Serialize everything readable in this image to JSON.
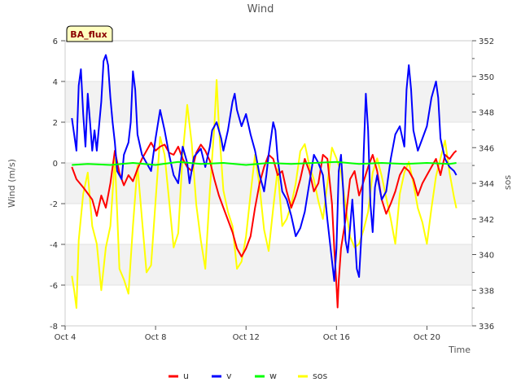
{
  "chart_data": {
    "type": "line",
    "title": "Wind",
    "badge": "BA_flux",
    "xlabel": "Time",
    "ylabel": "Wind (m/s)",
    "y2label": "sos",
    "x_ticks": [
      "Oct 4",
      "Oct 8",
      "Oct 12",
      "Oct 16",
      "Oct 20"
    ],
    "x_tick_days": [
      4,
      8,
      12,
      16,
      20
    ],
    "xlim": [
      4,
      22
    ],
    "ylim": [
      -8,
      6
    ],
    "y_ticks": [
      -8,
      -6,
      -4,
      -2,
      0,
      2,
      4,
      6
    ],
    "y2lim": [
      336,
      352
    ],
    "y2_ticks": [
      336,
      338,
      340,
      342,
      344,
      346,
      348,
      350,
      352
    ],
    "grid": "horizontal bands",
    "legend": "bottom-center",
    "series": [
      {
        "name": "u",
        "color": "#ff0000",
        "axis": "left",
        "points": [
          [
            4.3,
            -0.2
          ],
          [
            4.5,
            -0.8
          ],
          [
            4.8,
            -1.2
          ],
          [
            5.0,
            -1.5
          ],
          [
            5.2,
            -1.8
          ],
          [
            5.4,
            -2.6
          ],
          [
            5.6,
            -1.6
          ],
          [
            5.8,
            -2.2
          ],
          [
            6.0,
            -1.0
          ],
          [
            6.2,
            0.6
          ],
          [
            6.4,
            -0.5
          ],
          [
            6.6,
            -1.1
          ],
          [
            6.8,
            -0.6
          ],
          [
            7.0,
            -0.9
          ],
          [
            7.2,
            -0.3
          ],
          [
            7.4,
            0.2
          ],
          [
            7.6,
            0.6
          ],
          [
            7.8,
            1.0
          ],
          [
            8.0,
            0.6
          ],
          [
            8.2,
            0.8
          ],
          [
            8.4,
            0.9
          ],
          [
            8.6,
            0.5
          ],
          [
            8.8,
            0.4
          ],
          [
            9.0,
            0.8
          ],
          [
            9.2,
            0.2
          ],
          [
            9.4,
            -0.2
          ],
          [
            9.6,
            -0.4
          ],
          [
            9.8,
            0.5
          ],
          [
            10.0,
            0.9
          ],
          [
            10.2,
            0.6
          ],
          [
            10.4,
            0.1
          ],
          [
            10.6,
            -0.8
          ],
          [
            10.8,
            -1.6
          ],
          [
            11.0,
            -2.2
          ],
          [
            11.2,
            -2.8
          ],
          [
            11.4,
            -3.4
          ],
          [
            11.6,
            -4.2
          ],
          [
            11.8,
            -4.6
          ],
          [
            12.0,
            -4.2
          ],
          [
            12.2,
            -3.6
          ],
          [
            12.4,
            -2.2
          ],
          [
            12.6,
            -1.0
          ],
          [
            12.8,
            -0.2
          ],
          [
            13.0,
            0.4
          ],
          [
            13.2,
            0.2
          ],
          [
            13.4,
            -0.6
          ],
          [
            13.6,
            -0.4
          ],
          [
            13.8,
            -1.4
          ],
          [
            14.0,
            -2.2
          ],
          [
            14.2,
            -1.6
          ],
          [
            14.4,
            -0.8
          ],
          [
            14.6,
            0.2
          ],
          [
            14.8,
            -0.4
          ],
          [
            15.0,
            -1.4
          ],
          [
            15.2,
            -1.0
          ],
          [
            15.4,
            0.4
          ],
          [
            15.6,
            0.2
          ],
          [
            15.8,
            -2.0
          ],
          [
            15.9,
            -4.2
          ],
          [
            16.0,
            -6.0
          ],
          [
            16.05,
            -7.1
          ],
          [
            16.1,
            -5.8
          ],
          [
            16.2,
            -4.2
          ],
          [
            16.4,
            -2.8
          ],
          [
            16.6,
            -0.8
          ],
          [
            16.8,
            -0.4
          ],
          [
            17.0,
            -1.6
          ],
          [
            17.2,
            -0.9
          ],
          [
            17.4,
            -0.2
          ],
          [
            17.6,
            0.4
          ],
          [
            17.8,
            -0.4
          ],
          [
            18.0,
            -1.8
          ],
          [
            18.2,
            -2.5
          ],
          [
            18.4,
            -2.0
          ],
          [
            18.6,
            -1.4
          ],
          [
            18.8,
            -0.6
          ],
          [
            19.0,
            -0.2
          ],
          [
            19.2,
            -0.4
          ],
          [
            19.4,
            -0.8
          ],
          [
            19.6,
            -1.6
          ],
          [
            19.8,
            -1.0
          ],
          [
            20.0,
            -0.6
          ],
          [
            20.2,
            -0.2
          ],
          [
            20.4,
            0.2
          ],
          [
            20.6,
            -0.6
          ],
          [
            20.8,
            0.4
          ],
          [
            21.0,
            0.2
          ],
          [
            21.2,
            0.5
          ],
          [
            21.3,
            0.6
          ]
        ]
      },
      {
        "name": "v",
        "color": "#0000ff",
        "axis": "left",
        "points": [
          [
            4.3,
            2.2
          ],
          [
            4.4,
            1.4
          ],
          [
            4.5,
            0.6
          ],
          [
            4.6,
            3.8
          ],
          [
            4.7,
            4.6
          ],
          [
            4.8,
            2.4
          ],
          [
            4.9,
            0.8
          ],
          [
            5.0,
            3.4
          ],
          [
            5.1,
            2.0
          ],
          [
            5.2,
            0.6
          ],
          [
            5.3,
            1.6
          ],
          [
            5.4,
            0.6
          ],
          [
            5.6,
            3.0
          ],
          [
            5.7,
            5.0
          ],
          [
            5.8,
            5.3
          ],
          [
            5.9,
            4.8
          ],
          [
            6.0,
            3.2
          ],
          [
            6.1,
            2.0
          ],
          [
            6.2,
            1.0
          ],
          [
            6.3,
            -0.4
          ],
          [
            6.5,
            -0.8
          ],
          [
            6.6,
            0.4
          ],
          [
            6.8,
            1.0
          ],
          [
            6.9,
            2.0
          ],
          [
            7.0,
            4.5
          ],
          [
            7.1,
            3.6
          ],
          [
            7.2,
            1.4
          ],
          [
            7.4,
            0.4
          ],
          [
            7.6,
            0.0
          ],
          [
            7.8,
            -0.4
          ],
          [
            8.0,
            1.2
          ],
          [
            8.2,
            2.6
          ],
          [
            8.4,
            1.6
          ],
          [
            8.6,
            0.4
          ],
          [
            8.8,
            -0.6
          ],
          [
            9.0,
            -1.0
          ],
          [
            9.2,
            0.8
          ],
          [
            9.4,
            0.0
          ],
          [
            9.5,
            -1.0
          ],
          [
            9.7,
            0.3
          ],
          [
            10.0,
            0.7
          ],
          [
            10.2,
            -0.2
          ],
          [
            10.4,
            0.8
          ],
          [
            10.5,
            1.6
          ],
          [
            10.7,
            2.0
          ],
          [
            10.9,
            1.2
          ],
          [
            11.0,
            0.6
          ],
          [
            11.2,
            1.6
          ],
          [
            11.4,
            3.0
          ],
          [
            11.5,
            3.4
          ],
          [
            11.6,
            2.6
          ],
          [
            11.8,
            1.8
          ],
          [
            12.0,
            2.4
          ],
          [
            12.2,
            1.4
          ],
          [
            12.4,
            0.6
          ],
          [
            12.6,
            -0.6
          ],
          [
            12.8,
            -1.4
          ],
          [
            12.9,
            -0.6
          ],
          [
            13.0,
            0.4
          ],
          [
            13.2,
            2.0
          ],
          [
            13.3,
            1.6
          ],
          [
            13.4,
            0.2
          ],
          [
            13.6,
            -1.4
          ],
          [
            13.8,
            -1.8
          ],
          [
            14.0,
            -2.6
          ],
          [
            14.2,
            -3.6
          ],
          [
            14.4,
            -3.2
          ],
          [
            14.6,
            -2.4
          ],
          [
            14.8,
            -1.0
          ],
          [
            15.0,
            0.4
          ],
          [
            15.2,
            0.0
          ],
          [
            15.4,
            -0.6
          ],
          [
            15.6,
            -2.8
          ],
          [
            15.8,
            -4.8
          ],
          [
            15.9,
            -5.8
          ],
          [
            16.0,
            -4.2
          ],
          [
            16.1,
            -0.4
          ],
          [
            16.2,
            0.4
          ],
          [
            16.3,
            -1.4
          ],
          [
            16.4,
            -3.8
          ],
          [
            16.5,
            -4.4
          ],
          [
            16.6,
            -3.2
          ],
          [
            16.7,
            -1.8
          ],
          [
            16.8,
            -3.4
          ],
          [
            16.9,
            -5.2
          ],
          [
            17.0,
            -5.6
          ],
          [
            17.1,
            -3.6
          ],
          [
            17.2,
            0.4
          ],
          [
            17.3,
            3.4
          ],
          [
            17.4,
            1.6
          ],
          [
            17.5,
            -2.0
          ],
          [
            17.6,
            -3.4
          ],
          [
            17.7,
            -1.2
          ],
          [
            17.8,
            -0.6
          ],
          [
            18.0,
            -1.8
          ],
          [
            18.2,
            -1.4
          ],
          [
            18.4,
            0.2
          ],
          [
            18.6,
            1.4
          ],
          [
            18.8,
            1.8
          ],
          [
            19.0,
            0.8
          ],
          [
            19.1,
            3.6
          ],
          [
            19.2,
            4.8
          ],
          [
            19.3,
            3.6
          ],
          [
            19.4,
            1.6
          ],
          [
            19.6,
            0.6
          ],
          [
            19.8,
            1.2
          ],
          [
            20.0,
            1.8
          ],
          [
            20.2,
            3.2
          ],
          [
            20.4,
            4.0
          ],
          [
            20.5,
            3.2
          ],
          [
            20.6,
            1.2
          ],
          [
            20.8,
            0.2
          ],
          [
            21.0,
            -0.2
          ],
          [
            21.2,
            -0.4
          ],
          [
            21.3,
            -0.6
          ]
        ]
      },
      {
        "name": "w",
        "color": "#00ff00",
        "axis": "left",
        "points": [
          [
            4.3,
            -0.1
          ],
          [
            5.0,
            -0.05
          ],
          [
            6.0,
            -0.1
          ],
          [
            7.0,
            0.0
          ],
          [
            8.0,
            -0.1
          ],
          [
            9.0,
            0.05
          ],
          [
            10.0,
            -0.05
          ],
          [
            11.0,
            0.0
          ],
          [
            12.0,
            -0.1
          ],
          [
            13.0,
            0.0
          ],
          [
            14.0,
            -0.05
          ],
          [
            15.0,
            0.0
          ],
          [
            16.0,
            0.05
          ],
          [
            17.0,
            -0.05
          ],
          [
            18.0,
            0.0
          ],
          [
            19.0,
            -0.05
          ],
          [
            20.0,
            0.0
          ],
          [
            21.0,
            -0.05
          ],
          [
            21.3,
            0.0
          ]
        ]
      },
      {
        "name": "sos",
        "color": "#ffff00",
        "axis": "right",
        "points": [
          [
            4.3,
            338.8
          ],
          [
            4.4,
            338.0
          ],
          [
            4.5,
            337.0
          ],
          [
            4.6,
            340.8
          ],
          [
            4.8,
            343.4
          ],
          [
            5.0,
            344.6
          ],
          [
            5.2,
            341.6
          ],
          [
            5.4,
            340.6
          ],
          [
            5.6,
            338.0
          ],
          [
            5.8,
            340.4
          ],
          [
            6.0,
            341.6
          ],
          [
            6.2,
            345.4
          ],
          [
            6.3,
            342.4
          ],
          [
            6.4,
            339.2
          ],
          [
            6.6,
            338.6
          ],
          [
            6.8,
            337.8
          ],
          [
            7.0,
            341.6
          ],
          [
            7.2,
            345.0
          ],
          [
            7.4,
            342.0
          ],
          [
            7.6,
            339.0
          ],
          [
            7.8,
            339.4
          ],
          [
            8.0,
            343.0
          ],
          [
            8.2,
            346.6
          ],
          [
            8.4,
            345.6
          ],
          [
            8.6,
            343.0
          ],
          [
            8.8,
            340.4
          ],
          [
            9.0,
            341.2
          ],
          [
            9.2,
            345.6
          ],
          [
            9.4,
            348.4
          ],
          [
            9.6,
            346.2
          ],
          [
            9.8,
            342.8
          ],
          [
            10.0,
            340.8
          ],
          [
            10.2,
            339.2
          ],
          [
            10.4,
            343.6
          ],
          [
            10.6,
            347.2
          ],
          [
            10.7,
            349.8
          ],
          [
            10.8,
            347.2
          ],
          [
            11.0,
            343.6
          ],
          [
            11.2,
            342.4
          ],
          [
            11.4,
            341.6
          ],
          [
            11.6,
            339.2
          ],
          [
            11.8,
            339.6
          ],
          [
            12.0,
            341.0
          ],
          [
            12.2,
            343.4
          ],
          [
            12.4,
            345.6
          ],
          [
            12.6,
            343.8
          ],
          [
            12.8,
            341.4
          ],
          [
            13.0,
            340.2
          ],
          [
            13.2,
            342.6
          ],
          [
            13.4,
            344.8
          ],
          [
            13.6,
            341.6
          ],
          [
            13.8,
            342.0
          ],
          [
            14.0,
            342.8
          ],
          [
            14.2,
            344.0
          ],
          [
            14.4,
            345.8
          ],
          [
            14.6,
            346.2
          ],
          [
            14.8,
            345.0
          ],
          [
            15.0,
            344.2
          ],
          [
            15.2,
            343.0
          ],
          [
            15.4,
            342.0
          ],
          [
            15.6,
            344.0
          ],
          [
            15.8,
            346.0
          ],
          [
            16.0,
            345.4
          ],
          [
            16.2,
            344.6
          ],
          [
            16.4,
            342.8
          ],
          [
            16.6,
            341.0
          ],
          [
            16.8,
            340.4
          ],
          [
            17.0,
            340.6
          ],
          [
            17.2,
            341.4
          ],
          [
            17.4,
            342.4
          ],
          [
            17.6,
            344.6
          ],
          [
            17.8,
            345.4
          ],
          [
            18.0,
            344.4
          ],
          [
            18.2,
            343.2
          ],
          [
            18.4,
            342.0
          ],
          [
            18.6,
            340.6
          ],
          [
            18.8,
            343.4
          ],
          [
            19.0,
            344.6
          ],
          [
            19.2,
            345.2
          ],
          [
            19.4,
            344.0
          ],
          [
            19.6,
            342.6
          ],
          [
            19.8,
            341.8
          ],
          [
            20.0,
            340.6
          ],
          [
            20.2,
            342.6
          ],
          [
            20.4,
            344.4
          ],
          [
            20.6,
            345.4
          ],
          [
            20.8,
            346.4
          ],
          [
            21.0,
            344.6
          ],
          [
            21.2,
            343.2
          ],
          [
            21.3,
            342.6
          ]
        ]
      }
    ]
  }
}
